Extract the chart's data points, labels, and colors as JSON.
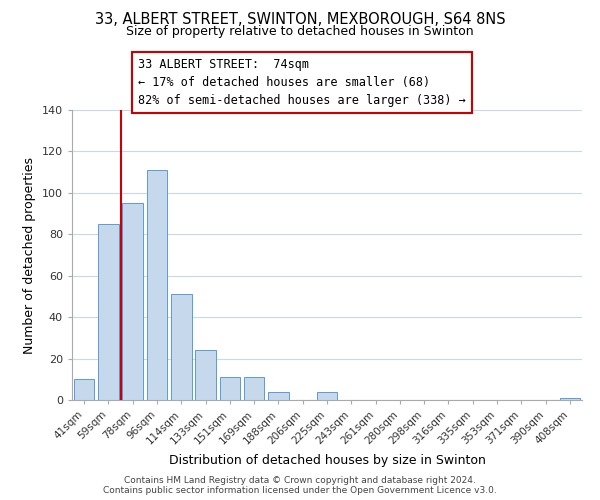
{
  "title_line1": "33, ALBERT STREET, SWINTON, MEXBOROUGH, S64 8NS",
  "title_line2": "Size of property relative to detached houses in Swinton",
  "xlabel": "Distribution of detached houses by size in Swinton",
  "ylabel": "Number of detached properties",
  "bar_labels": [
    "41sqm",
    "59sqm",
    "78sqm",
    "96sqm",
    "114sqm",
    "133sqm",
    "151sqm",
    "169sqm",
    "188sqm",
    "206sqm",
    "225sqm",
    "243sqm",
    "261sqm",
    "280sqm",
    "298sqm",
    "316sqm",
    "335sqm",
    "353sqm",
    "371sqm",
    "390sqm",
    "408sqm"
  ],
  "bar_values": [
    10,
    85,
    95,
    111,
    51,
    24,
    11,
    11,
    4,
    0,
    4,
    0,
    0,
    0,
    0,
    0,
    0,
    0,
    0,
    0,
    1
  ],
  "bar_color": "#c6d9ec",
  "bar_edge_color": "#5b9bd5",
  "vline_x": 1.5,
  "vline_color": "#cc0000",
  "ylim": [
    0,
    140
  ],
  "yticks": [
    0,
    20,
    40,
    60,
    80,
    100,
    120,
    140
  ],
  "annotation_text_line1": "33 ALBERT STREET:  74sqm",
  "annotation_text_line2": "← 17% of detached houses are smaller (68)",
  "annotation_text_line3": "82% of semi-detached houses are larger (338) →",
  "footer_line1": "Contains HM Land Registry data © Crown copyright and database right 2024.",
  "footer_line2": "Contains public sector information licensed under the Open Government Licence v3.0.",
  "background_color": "#ffffff",
  "grid_color": "#c8d8e8"
}
